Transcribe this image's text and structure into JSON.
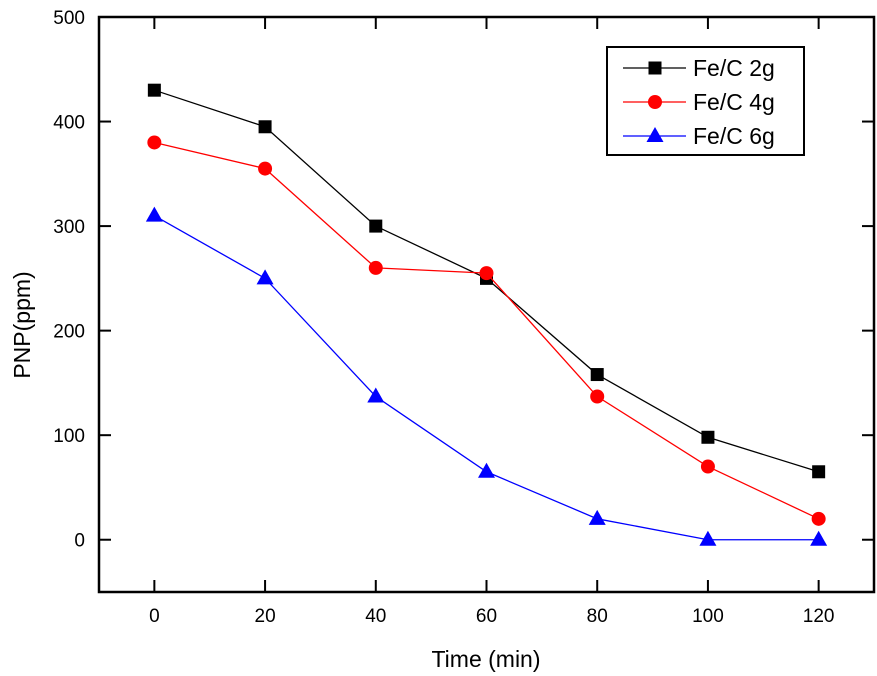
{
  "chart_data": {
    "type": "line",
    "title": "",
    "xlabel": "Time (min)",
    "ylabel": "PNP(ppm)",
    "x": [
      0,
      20,
      40,
      60,
      80,
      100,
      120
    ],
    "xlim": [
      -10,
      130
    ],
    "ylim": [
      -50,
      500
    ],
    "xticks": [
      0,
      20,
      40,
      60,
      80,
      100,
      120
    ],
    "yticks": [
      0,
      100,
      200,
      300,
      400,
      500
    ],
    "xtick_labels": [
      "0",
      "20",
      "40",
      "60",
      "80",
      "100",
      "120"
    ],
    "ytick_labels": [
      "0",
      "100",
      "200",
      "300",
      "400",
      "500"
    ],
    "grid": false,
    "legend_position": "top-right",
    "series": [
      {
        "name": "Fe/C 2g",
        "color": "#000000",
        "marker": "square",
        "values": [
          430,
          395,
          300,
          250,
          158,
          98,
          65
        ]
      },
      {
        "name": "Fe/C 4g",
        "color": "#ff0000",
        "marker": "circle",
        "values": [
          380,
          355,
          260,
          255,
          137,
          70,
          20
        ]
      },
      {
        "name": "Fe/C 6g",
        "color": "#0000ff",
        "marker": "triangle",
        "values": [
          310,
          250,
          137,
          65,
          20,
          0,
          0
        ]
      }
    ]
  }
}
